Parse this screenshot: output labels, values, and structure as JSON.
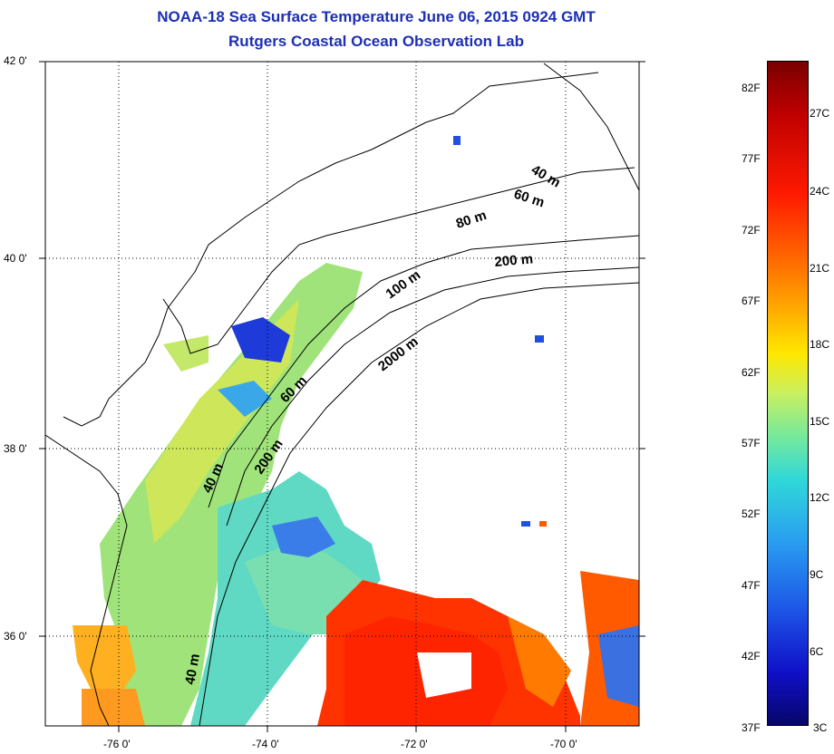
{
  "title_line1": "NOAA-18 Sea Surface Temperature June 06, 2015 0924 GMT",
  "title_line2": "Rutgers Coastal Ocean Observation Lab",
  "map": {
    "lat_labels": [
      "42 0'",
      "40 0'",
      "38 0'",
      "36 0'"
    ],
    "lon_labels": [
      "-76 0'",
      "-74 0'",
      "-72 0'",
      "-70 0'"
    ],
    "isobath_labels": [
      "40 m",
      "60 m",
      "80 m",
      "100 m",
      "200 m",
      "2000 m",
      "60 m",
      "40 m",
      "200 m",
      "40 m"
    ]
  },
  "colorbar": {
    "fahrenheit": [
      "82F",
      "77F",
      "72F",
      "67F",
      "62F",
      "57F",
      "52F",
      "47F",
      "42F",
      "37F"
    ],
    "celsius": [
      "27C",
      "24C",
      "21C",
      "18C",
      "15C",
      "12C",
      "9C",
      "6C",
      "3C"
    ],
    "colors": {
      "max": "#7a0000",
      "warm": "#ff1a00",
      "mid": "#ffe800",
      "cool": "#30d8d8",
      "min": "#06066a"
    }
  }
}
